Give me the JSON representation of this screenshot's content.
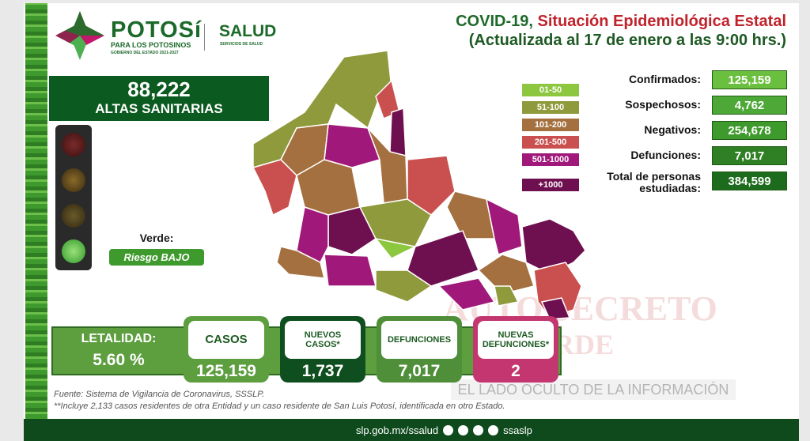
{
  "header": {
    "logo_title": "POTOSí",
    "logo_subtitle": "PARA LOS POTOSINOS",
    "logo_tagline": "GOBIERNO DEL ESTADO 2021-2027",
    "dept": "SALUD",
    "dept_sub": "SERVICIOS DE SALUD",
    "title_prefix": "COVID-19,",
    "title_main": "Situación Epidemiológica Estatal",
    "title_update": "(Actualizada al 17 de enero a las 9:00 hrs.)"
  },
  "altas": {
    "value": "88,222",
    "label": "ALTAS SANITARIAS"
  },
  "semaforo": {
    "state": "Verde:",
    "risk": "Riesgo BAJO",
    "active": "green"
  },
  "legend": [
    {
      "label": "01-50",
      "color": "#8dc63f"
    },
    {
      "label": "51-100",
      "color": "#8f9a3c"
    },
    {
      "label": "101-200",
      "color": "#a5703f"
    },
    {
      "label": "201-500",
      "color": "#c9504f"
    },
    {
      "label": "501-1000",
      "color": "#a0197a"
    },
    {
      "label": "+1000",
      "color": "#6e0f4f"
    }
  ],
  "stats": [
    {
      "label": "Confirmados:",
      "value": "125,159"
    },
    {
      "label": "Sospechosos:",
      "value": "4,762"
    },
    {
      "label": "Negativos:",
      "value": "254,678"
    },
    {
      "label": "Defunciones:",
      "value": "7,017"
    },
    {
      "label": "Total de personas estudiadas:",
      "value": "384,599"
    }
  ],
  "bottom": {
    "letalidad_label": "LETALIDAD:",
    "letalidad_value": "5.60 %",
    "cards": [
      {
        "label": "CASOS",
        "value": "125,159"
      },
      {
        "label": "NUEVOS CASOS*",
        "value": "1,737"
      },
      {
        "label": "DEFUNCIONES",
        "value": "7,017"
      },
      {
        "label": "NUEVAS DEFUNCIONES*",
        "value": "2"
      }
    ]
  },
  "notes": {
    "source": "Fuente: Sistema de Vigilancia de Coronavirus, SSSLP.",
    "footnote": "**Incluye 2,133 casos residentes de otra Entidad y un caso residente de San Luis Potosí, identificada en otro Estado."
  },
  "watermark": {
    "line1": "AUTO SECRETO",
    "line2": "VERDE",
    "tagline": "EL LADO OCULTO DE LA INFORMACIÓN"
  },
  "footer": {
    "url": "slp.gob.mx/ssalud",
    "handle": "ssaslp"
  }
}
